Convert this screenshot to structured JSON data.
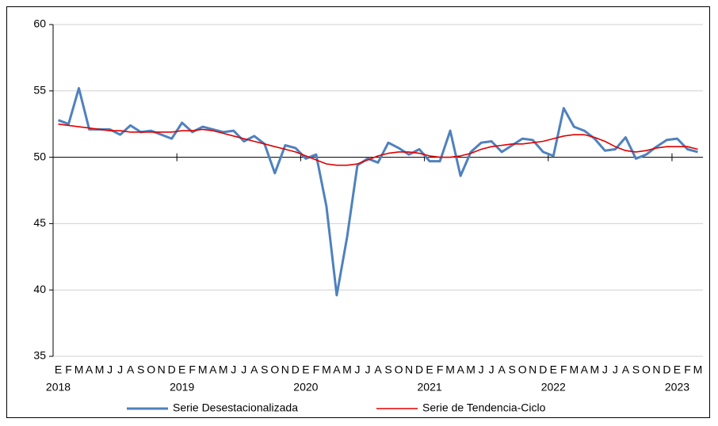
{
  "chart_data": {
    "type": "line",
    "categories": [
      "E",
      "F",
      "M",
      "A",
      "M",
      "J",
      "J",
      "A",
      "S",
      "O",
      "N",
      "D",
      "E",
      "F",
      "M",
      "A",
      "M",
      "J",
      "J",
      "A",
      "S",
      "O",
      "N",
      "D",
      "E",
      "F",
      "M",
      "A",
      "M",
      "J",
      "J",
      "A",
      "S",
      "O",
      "N",
      "D",
      "E",
      "F",
      "M",
      "A",
      "M",
      "J",
      "J",
      "A",
      "S",
      "O",
      "N",
      "D",
      "E",
      "F",
      "M",
      "A",
      "M",
      "J",
      "J",
      "A",
      "S",
      "O",
      "N",
      "D",
      "E",
      "F",
      "M"
    ],
    "years": [
      "2018",
      "2019",
      "2020",
      "2021",
      "2022",
      "2023"
    ],
    "series": [
      {
        "name": "Serie Desestacionalizada",
        "color": "#4f81bd",
        "values": [
          52.8,
          52.5,
          55.2,
          52.1,
          52.1,
          52.1,
          51.7,
          52.4,
          51.9,
          52.0,
          51.7,
          51.4,
          52.6,
          51.9,
          52.3,
          52.1,
          51.9,
          52.0,
          51.2,
          51.6,
          51.0,
          48.8,
          50.9,
          50.7,
          49.9,
          50.2,
          46.3,
          39.6,
          44.0,
          49.4,
          49.9,
          49.6,
          51.1,
          50.7,
          50.2,
          50.6,
          49.7,
          49.7,
          52.0,
          48.6,
          50.4,
          51.1,
          51.2,
          50.4,
          50.9,
          51.4,
          51.3,
          50.4,
          50.1,
          53.7,
          52.3,
          52.0,
          51.4,
          50.5,
          50.6,
          51.5,
          49.9,
          50.2,
          50.8,
          51.3,
          51.4,
          50.6,
          50.4
        ]
      },
      {
        "name": "Serie de Tendencia-Ciclo",
        "color": "#e00000",
        "values": [
          52.5,
          52.4,
          52.3,
          52.2,
          52.1,
          52.0,
          52.0,
          51.9,
          51.9,
          51.9,
          51.9,
          51.9,
          52.0,
          52.0,
          52.1,
          52.0,
          51.8,
          51.6,
          51.4,
          51.2,
          51.0,
          50.8,
          50.6,
          50.4,
          50.1,
          49.8,
          49.5,
          49.4,
          49.4,
          49.5,
          49.8,
          50.1,
          50.3,
          50.4,
          50.4,
          50.3,
          50.1,
          50.0,
          50.0,
          50.1,
          50.3,
          50.6,
          50.8,
          50.9,
          51.0,
          51.0,
          51.1,
          51.2,
          51.4,
          51.6,
          51.7,
          51.7,
          51.5,
          51.2,
          50.8,
          50.5,
          50.4,
          50.5,
          50.7,
          50.8,
          50.8,
          50.8,
          50.6
        ]
      }
    ],
    "ylim": [
      35,
      60
    ],
    "yticks": [
      35,
      40,
      45,
      50,
      55,
      60
    ],
    "x_axis_at": 50,
    "grid": true,
    "legend": "bottom"
  }
}
